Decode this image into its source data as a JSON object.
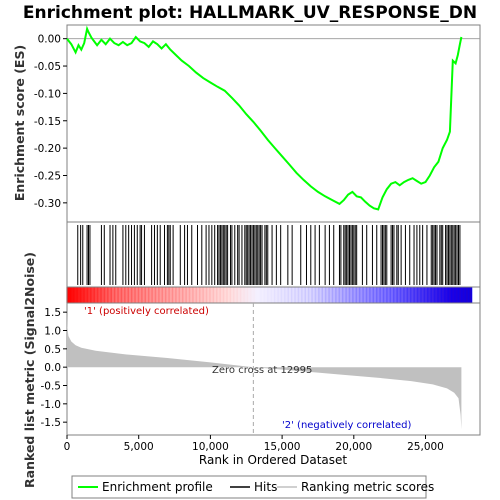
{
  "title": "Enrichment plot: HALLMARK_UV_RESPONSE_DN",
  "chart_data": [
    {
      "type": "line",
      "panel": "enrichment",
      "ylabel": "Enrichment score (ES)",
      "xlim": [
        0,
        28800
      ],
      "ylim": [
        -0.335,
        0.025
      ],
      "yticks": [
        0.0,
        -0.05,
        -0.1,
        -0.15,
        -0.2,
        -0.25,
        -0.3
      ],
      "ytick_labels": [
        "0.00",
        "-0.05",
        "-0.10",
        "-0.15",
        "-0.20",
        "-0.25",
        "-0.30"
      ],
      "grid": false,
      "zero_line": true,
      "color": "#00ff00",
      "series": [
        {
          "name": "Enrichment profile",
          "x": [
            0,
            300,
            600,
            800,
            1000,
            1200,
            1400,
            1500,
            1700,
            1900,
            2100,
            2400,
            2700,
            3000,
            3300,
            3600,
            3900,
            4200,
            4500,
            4800,
            5100,
            5400,
            5700,
            6000,
            6300,
            6600,
            6900,
            7200,
            7600,
            8000,
            8500,
            9000,
            9500,
            10000,
            10500,
            11000,
            11500,
            12000,
            12500,
            13000,
            13500,
            14000,
            14500,
            15000,
            15500,
            16000,
            16500,
            17000,
            17500,
            18000,
            18500,
            19000,
            19300,
            19600,
            19900,
            20200,
            20500,
            20800,
            21100,
            21400,
            21700,
            22000,
            22300,
            22600,
            22900,
            23200,
            23500,
            23800,
            24100,
            24400,
            24700,
            25000,
            25300,
            25600,
            25900,
            26200,
            26500,
            26700,
            26900,
            27100,
            27250,
            27400,
            27500
          ],
          "y": [
            0.0,
            -0.01,
            -0.025,
            -0.012,
            -0.02,
            -0.008,
            0.018,
            0.012,
            0.002,
            -0.005,
            -0.012,
            -0.002,
            -0.01,
            0.0,
            -0.008,
            -0.012,
            -0.006,
            -0.012,
            -0.008,
            0.003,
            -0.005,
            -0.008,
            -0.015,
            -0.005,
            -0.01,
            -0.018,
            -0.01,
            -0.02,
            -0.03,
            -0.04,
            -0.05,
            -0.062,
            -0.072,
            -0.08,
            -0.088,
            -0.095,
            -0.108,
            -0.122,
            -0.138,
            -0.152,
            -0.168,
            -0.185,
            -0.2,
            -0.215,
            -0.23,
            -0.245,
            -0.258,
            -0.27,
            -0.28,
            -0.288,
            -0.295,
            -0.302,
            -0.295,
            -0.285,
            -0.28,
            -0.288,
            -0.29,
            -0.298,
            -0.305,
            -0.31,
            -0.312,
            -0.29,
            -0.275,
            -0.265,
            -0.262,
            -0.268,
            -0.262,
            -0.258,
            -0.255,
            -0.26,
            -0.265,
            -0.262,
            -0.25,
            -0.235,
            -0.225,
            -0.2,
            -0.185,
            -0.17,
            -0.04,
            -0.045,
            -0.03,
            -0.01,
            0.003
          ]
        }
      ]
    },
    {
      "type": "scatter",
      "panel": "hits",
      "series": [
        {
          "name": "Hits",
          "x": [
            750,
            950,
            1100,
            1400,
            1500,
            1600,
            2400,
            2600,
            3000,
            3200,
            3400,
            3900,
            4100,
            4300,
            4500,
            4700,
            4900,
            5100,
            5200,
            5400,
            5900,
            6100,
            6300,
            6500,
            6800,
            7000,
            7100,
            7200,
            7400,
            7900,
            8200,
            8400,
            8700,
            9100,
            9400,
            9700,
            9900,
            10100,
            10300,
            10500,
            10600,
            10700,
            10800,
            10900,
            11000,
            11100,
            11200,
            11400,
            11500,
            11700,
            11900,
            12000,
            12200,
            12400,
            12500,
            12600,
            12700,
            12800,
            12900,
            13000,
            13100,
            13200,
            13300,
            13400,
            13500,
            13600,
            13800,
            13900,
            14000,
            14300,
            14600,
            14900,
            15400,
            15700,
            16300,
            16700,
            17000,
            17300,
            17600,
            18000,
            18300,
            18600,
            19000,
            19100,
            19300,
            19400,
            19500,
            19600,
            19700,
            19800,
            19900,
            20000,
            20100,
            20200,
            20600,
            20900,
            21300,
            21600,
            21900,
            22000,
            22100,
            22200,
            22300,
            22600,
            22700,
            22800,
            23000,
            23100,
            23300,
            23600,
            23900,
            24200,
            24400,
            24600,
            24800,
            25100,
            25400,
            25500,
            25600,
            25700,
            25800,
            26000,
            26100,
            26200,
            26400,
            26500,
            26600,
            26700,
            26800,
            26900,
            27000,
            27100,
            27200,
            27300,
            27400
          ]
        }
      ]
    },
    {
      "type": "area",
      "panel": "ranked_metric",
      "ylabel": "Ranked list metric (Signal2Noise)",
      "xlabel": "Rank in Ordered Dataset",
      "xlim": [
        0,
        28800
      ],
      "ylim": [
        -1.85,
        1.75
      ],
      "xticks": [
        0,
        5000,
        10000,
        15000,
        20000,
        25000
      ],
      "xtick_labels": [
        "0",
        "5,000",
        "10,000",
        "15,000",
        "20,000",
        "25,000"
      ],
      "yticks": [
        1.5,
        1.0,
        0.5,
        0.0,
        -0.5,
        -1.0,
        -1.5
      ],
      "ytick_labels": [
        "1.5",
        "1.0",
        "0.5",
        "0.0",
        "-0.5",
        "-1.0",
        "-1.5"
      ],
      "color": "#c0c0c0",
      "series": [
        {
          "name": "Ranking metric scores",
          "x": [
            0,
            30,
            100,
            300,
            600,
            1000,
            2000,
            4000,
            7000,
            10000,
            12995,
            16000,
            19000,
            22000,
            24000,
            25500,
            26500,
            27000,
            27300,
            27450,
            27500
          ],
          "y": [
            1.5,
            1.1,
            0.85,
            0.7,
            0.6,
            0.53,
            0.45,
            0.35,
            0.25,
            0.13,
            0.0,
            -0.1,
            -0.2,
            -0.3,
            -0.38,
            -0.47,
            -0.58,
            -0.7,
            -0.85,
            -1.3,
            -1.7
          ]
        }
      ],
      "annotations": [
        "Zero cross at 12995",
        "'1' (positively correlated)",
        "'2' (negatively correlated)"
      ],
      "zero_cross": 12995
    }
  ],
  "legend": {
    "items": [
      {
        "label": "Enrichment profile",
        "color": "#00ff00"
      },
      {
        "label": "Hits",
        "color": "#000000"
      },
      {
        "label": "Ranking metric scores",
        "color": "#c0c0c0"
      }
    ],
    "placement": "bottom"
  },
  "colors": {
    "positive_label": "#cc0000",
    "negative_label": "#0000cc",
    "bar_red": "#ff0000",
    "bar_blue": "#0000ff"
  }
}
